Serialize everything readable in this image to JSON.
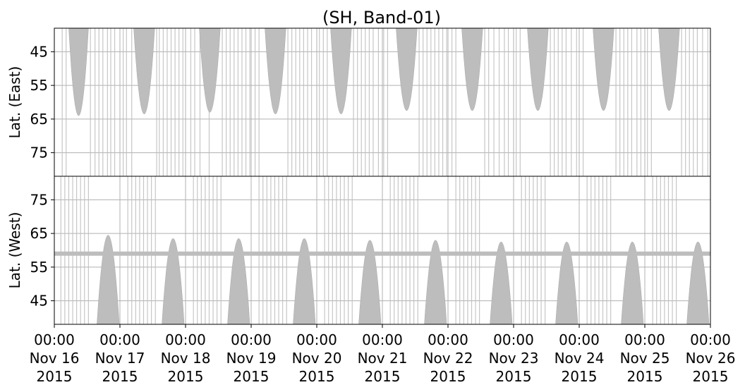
{
  "chart_data": {
    "type": "area",
    "title": "(SH, Band-01)",
    "grid": true,
    "fill_color": "#bdbdbd",
    "grid_color": "#b0b0b0",
    "x_ticks": [
      {
        "day": 0,
        "l1": "00:00",
        "l2": "Nov 16",
        "l3": "2015"
      },
      {
        "day": 1,
        "l1": "00:00",
        "l2": "Nov 17",
        "l3": "2015"
      },
      {
        "day": 2,
        "l1": "00:00",
        "l2": "Nov 18",
        "l3": "2015"
      },
      {
        "day": 3,
        "l1": "00:00",
        "l2": "Nov 19",
        "l3": "2015"
      },
      {
        "day": 4,
        "l1": "00:00",
        "l2": "Nov 20",
        "l3": "2015"
      },
      {
        "day": 5,
        "l1": "00:00",
        "l2": "Nov 21",
        "l3": "2015"
      },
      {
        "day": 6,
        "l1": "00:00",
        "l2": "Nov 22",
        "l3": "2015"
      },
      {
        "day": 7,
        "l1": "00:00",
        "l2": "Nov 23",
        "l3": "2015"
      },
      {
        "day": 8,
        "l1": "00:00",
        "l2": "Nov 24",
        "l3": "2015"
      },
      {
        "day": 9,
        "l1": "00:00",
        "l2": "Nov 25",
        "l3": "2015"
      },
      {
        "day": 10,
        "l1": "00:00",
        "l2": "Nov 26",
        "l3": "2015"
      }
    ],
    "panels": [
      {
        "id": "east",
        "ylabel": "Lat. (East)",
        "ylim": [
          38,
          82
        ],
        "inverted": true,
        "yticks": [
          "45",
          "55",
          "65",
          "75"
        ],
        "ytick_values": [
          45,
          55,
          65,
          75
        ],
        "lobes": [
          {
            "center": 0.37,
            "half_width": 0.15,
            "peak": 64
          },
          {
            "center": 1.37,
            "half_width": 0.16,
            "peak": 63.5
          },
          {
            "center": 2.37,
            "half_width": 0.16,
            "peak": 63
          },
          {
            "center": 3.37,
            "half_width": 0.16,
            "peak": 63.5
          },
          {
            "center": 4.37,
            "half_width": 0.16,
            "peak": 63.5
          },
          {
            "center": 5.37,
            "half_width": 0.16,
            "peak": 62.5
          },
          {
            "center": 6.37,
            "half_width": 0.16,
            "peak": 62.5
          },
          {
            "center": 7.37,
            "half_width": 0.16,
            "peak": 62.5
          },
          {
            "center": 8.37,
            "half_width": 0.16,
            "peak": 62.5
          },
          {
            "center": 9.37,
            "half_width": 0.16,
            "peak": 62.5
          }
        ],
        "stripes": [
          0.12,
          0.18,
          0.55,
          0.62,
          0.68,
          0.74,
          0.81,
          0.86,
          0.92,
          1.05,
          1.1,
          1.18,
          1.56,
          1.6,
          1.66,
          1.72,
          1.78,
          1.84,
          1.9,
          1.96,
          2.08,
          2.14,
          2.22,
          2.36,
          2.56,
          2.62,
          2.68,
          2.74,
          2.8,
          2.86,
          2.92,
          2.98,
          3.06,
          3.12,
          3.56,
          3.62,
          3.68,
          3.74,
          3.8,
          3.86,
          3.92,
          4.04,
          4.1,
          4.16,
          4.56,
          4.62,
          4.68,
          4.74,
          4.8,
          4.86,
          4.94,
          5.02,
          5.08,
          5.56,
          5.62,
          5.68,
          5.74,
          5.8,
          5.86,
          5.92,
          5.98,
          6.06,
          6.12,
          6.56,
          6.62,
          6.7,
          6.78,
          6.86,
          6.92,
          7.04,
          7.1,
          7.56,
          7.62,
          7.68,
          7.74,
          7.8,
          7.88,
          7.96,
          8.06,
          8.56,
          8.62,
          8.68,
          8.74,
          8.8,
          8.88,
          8.94,
          9.04,
          9.1,
          9.56,
          9.62,
          9.68,
          9.74,
          9.8,
          9.88,
          9.96
        ],
        "band_value": null
      },
      {
        "id": "west",
        "ylabel": "Lat. (West)",
        "ylim": [
          38,
          82
        ],
        "inverted": false,
        "yticks": [
          "45",
          "55",
          "65",
          "75"
        ],
        "ytick_values": [
          45,
          55,
          65,
          75
        ],
        "lobes": [
          {
            "center": 0.82,
            "half_width": 0.17,
            "peak": 64.5
          },
          {
            "center": 1.81,
            "half_width": 0.17,
            "peak": 63.5
          },
          {
            "center": 2.81,
            "half_width": 0.17,
            "peak": 63.5
          },
          {
            "center": 3.81,
            "half_width": 0.17,
            "peak": 63.5
          },
          {
            "center": 4.81,
            "half_width": 0.17,
            "peak": 63
          },
          {
            "center": 5.81,
            "half_width": 0.17,
            "peak": 63
          },
          {
            "center": 6.81,
            "half_width": 0.17,
            "peak": 62.5
          },
          {
            "center": 7.81,
            "half_width": 0.17,
            "peak": 62.5
          },
          {
            "center": 8.81,
            "half_width": 0.17,
            "peak": 62.5
          },
          {
            "center": 9.81,
            "half_width": 0.17,
            "peak": 62.5
          }
        ],
        "stripes": [
          0.1,
          0.16,
          0.22,
          0.28,
          0.34,
          0.4,
          0.46,
          0.52,
          1.12,
          1.18,
          1.24,
          1.3,
          1.36,
          1.42,
          1.48,
          1.54,
          2.12,
          2.18,
          2.24,
          2.3,
          2.36,
          2.42,
          2.48,
          2.54,
          3.12,
          3.18,
          3.24,
          3.3,
          3.36,
          3.42,
          3.48,
          3.54,
          4.12,
          4.18,
          4.24,
          4.3,
          4.36,
          4.42,
          4.48,
          4.54,
          5.12,
          5.18,
          5.24,
          5.3,
          5.36,
          5.42,
          5.48,
          5.54,
          6.12,
          6.18,
          6.24,
          6.3,
          6.36,
          6.42,
          6.48,
          7.12,
          7.18,
          7.24,
          7.3,
          7.36,
          7.42,
          7.48,
          8.12,
          8.18,
          8.24,
          8.3,
          8.36,
          8.42,
          8.48,
          9.12,
          9.18,
          9.24,
          9.3,
          9.36,
          9.42,
          9.48
        ],
        "band_value": 59
      }
    ]
  }
}
